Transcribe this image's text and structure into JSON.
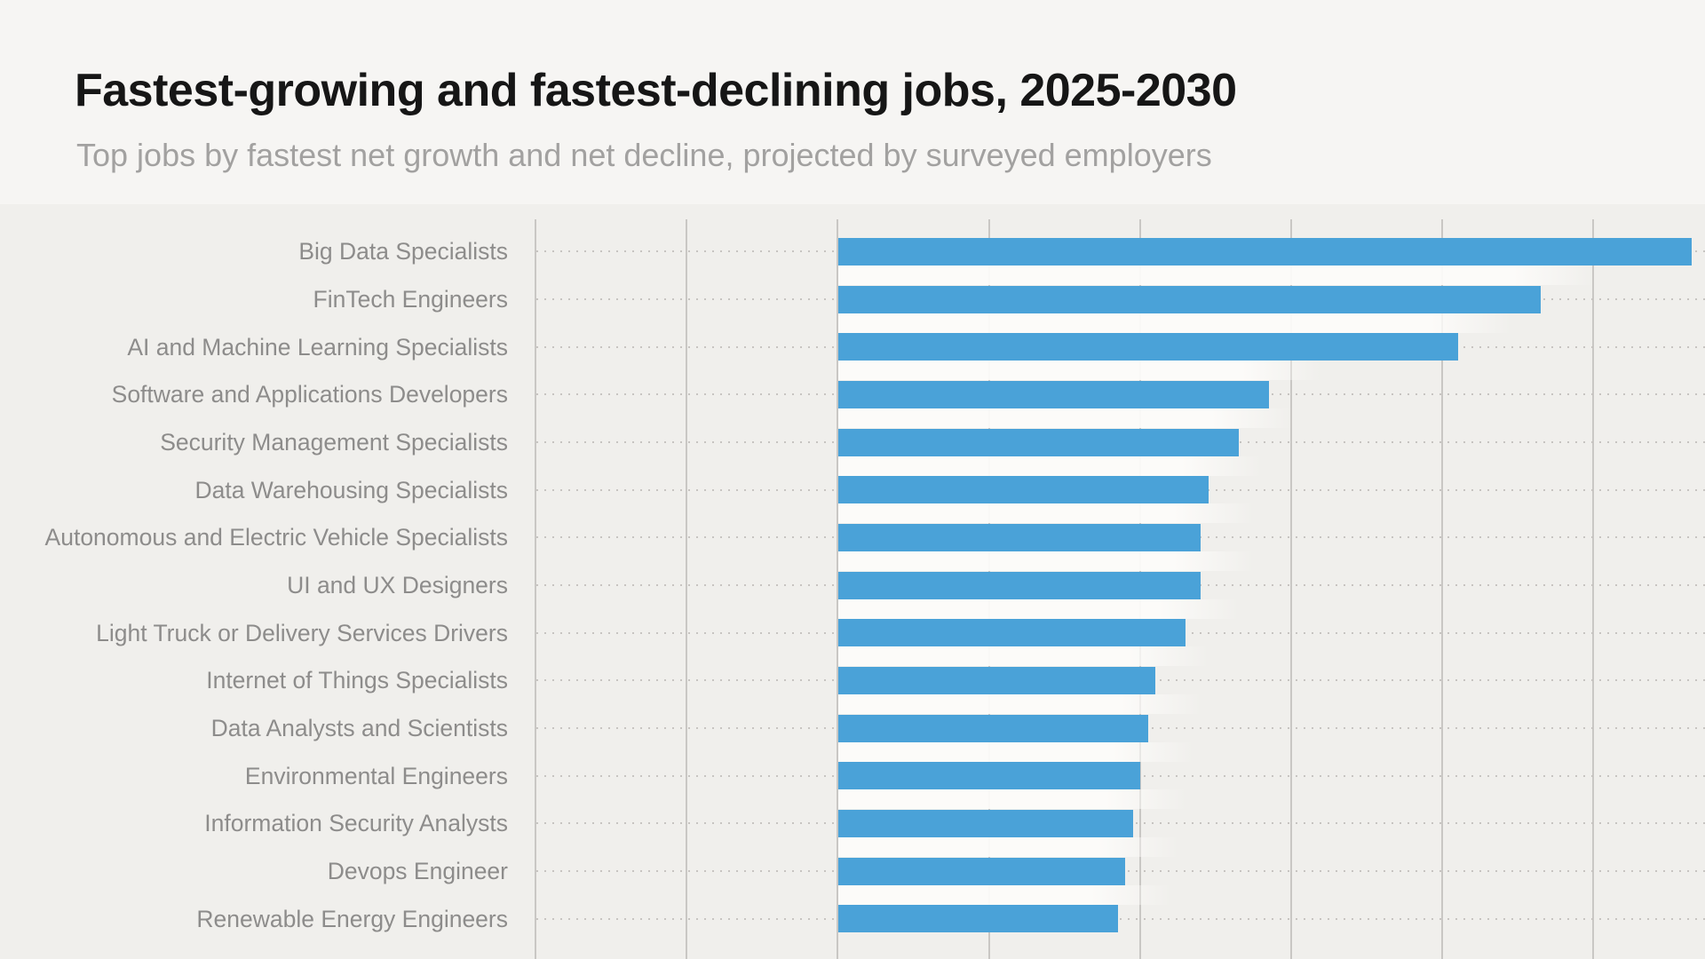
{
  "header": {
    "title": "Fastest-growing and fastest-declining jobs, 2025-2030",
    "subtitle": "Top jobs by fastest net growth and net decline, projected by surveyed employers"
  },
  "chart_data": {
    "type": "bar",
    "orientation": "horizontal",
    "title": "Fastest-growing and fastest-declining jobs, 2025-2030",
    "subtitle": "Top jobs by fastest net growth and net decline, projected by surveyed employers",
    "categories": [
      "Big Data Specialists",
      "FinTech Engineers",
      "AI and Machine Learning Specialists",
      "Software and Applications Developers",
      "Security Management Specialists",
      "Data Warehousing Specialists",
      "Autonomous and Electric Vehicle Specialists",
      "UI and UX Designers",
      "Light Truck or Delivery Services Drivers",
      "Internet of Things Specialists",
      "Data Analysts and Scientists",
      "Environmental Engineers",
      "Information Security Analysts",
      "Devops Engineer",
      "Renewable Energy Engineers"
    ],
    "values": [
      113,
      93,
      82,
      57,
      53,
      49,
      48,
      48,
      46,
      42,
      41,
      40,
      39,
      38,
      37
    ],
    "value_unit": "percent net growth (estimated from bar lengths vs gridlines)",
    "xlabel": "",
    "ylabel": "",
    "xlim": [
      -40,
      115
    ],
    "gridline_values": [
      -40,
      -20,
      0,
      20,
      40,
      60,
      80,
      100
    ],
    "grid": true,
    "tick_labels_visible": false,
    "legend": false,
    "bar_color": "#4aa2d8"
  },
  "colors": {
    "page_bg": "#f6f5f3",
    "chart_bg": "#f0efec",
    "title": "#161616",
    "subtitle": "#a2a1a0",
    "label": "#8d8c8b",
    "gridline": "#c9c7c4",
    "dotted_guide": "#c7c4c1",
    "bar": "#4aa2d8",
    "gap_band": "rgba(253,252,250,0.92)"
  }
}
